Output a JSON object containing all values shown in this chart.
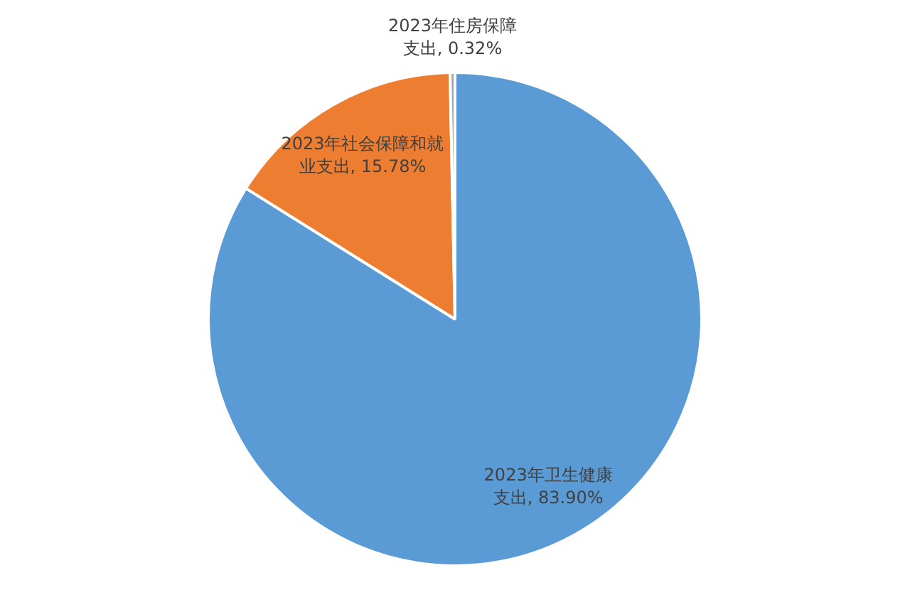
{
  "chart_data": {
    "type": "pie",
    "categories": [
      "2023年卫生健康支出",
      "2023年社会保障和就业支出",
      "2023年住房保障支出"
    ],
    "values": [
      83.9,
      15.78,
      0.32
    ],
    "value_labels": [
      "83.90%",
      "15.78%",
      "0.32%"
    ],
    "colors": [
      "#5b9bd5",
      "#ed7d31",
      "#a5a5a5"
    ],
    "legend": false
  }
}
